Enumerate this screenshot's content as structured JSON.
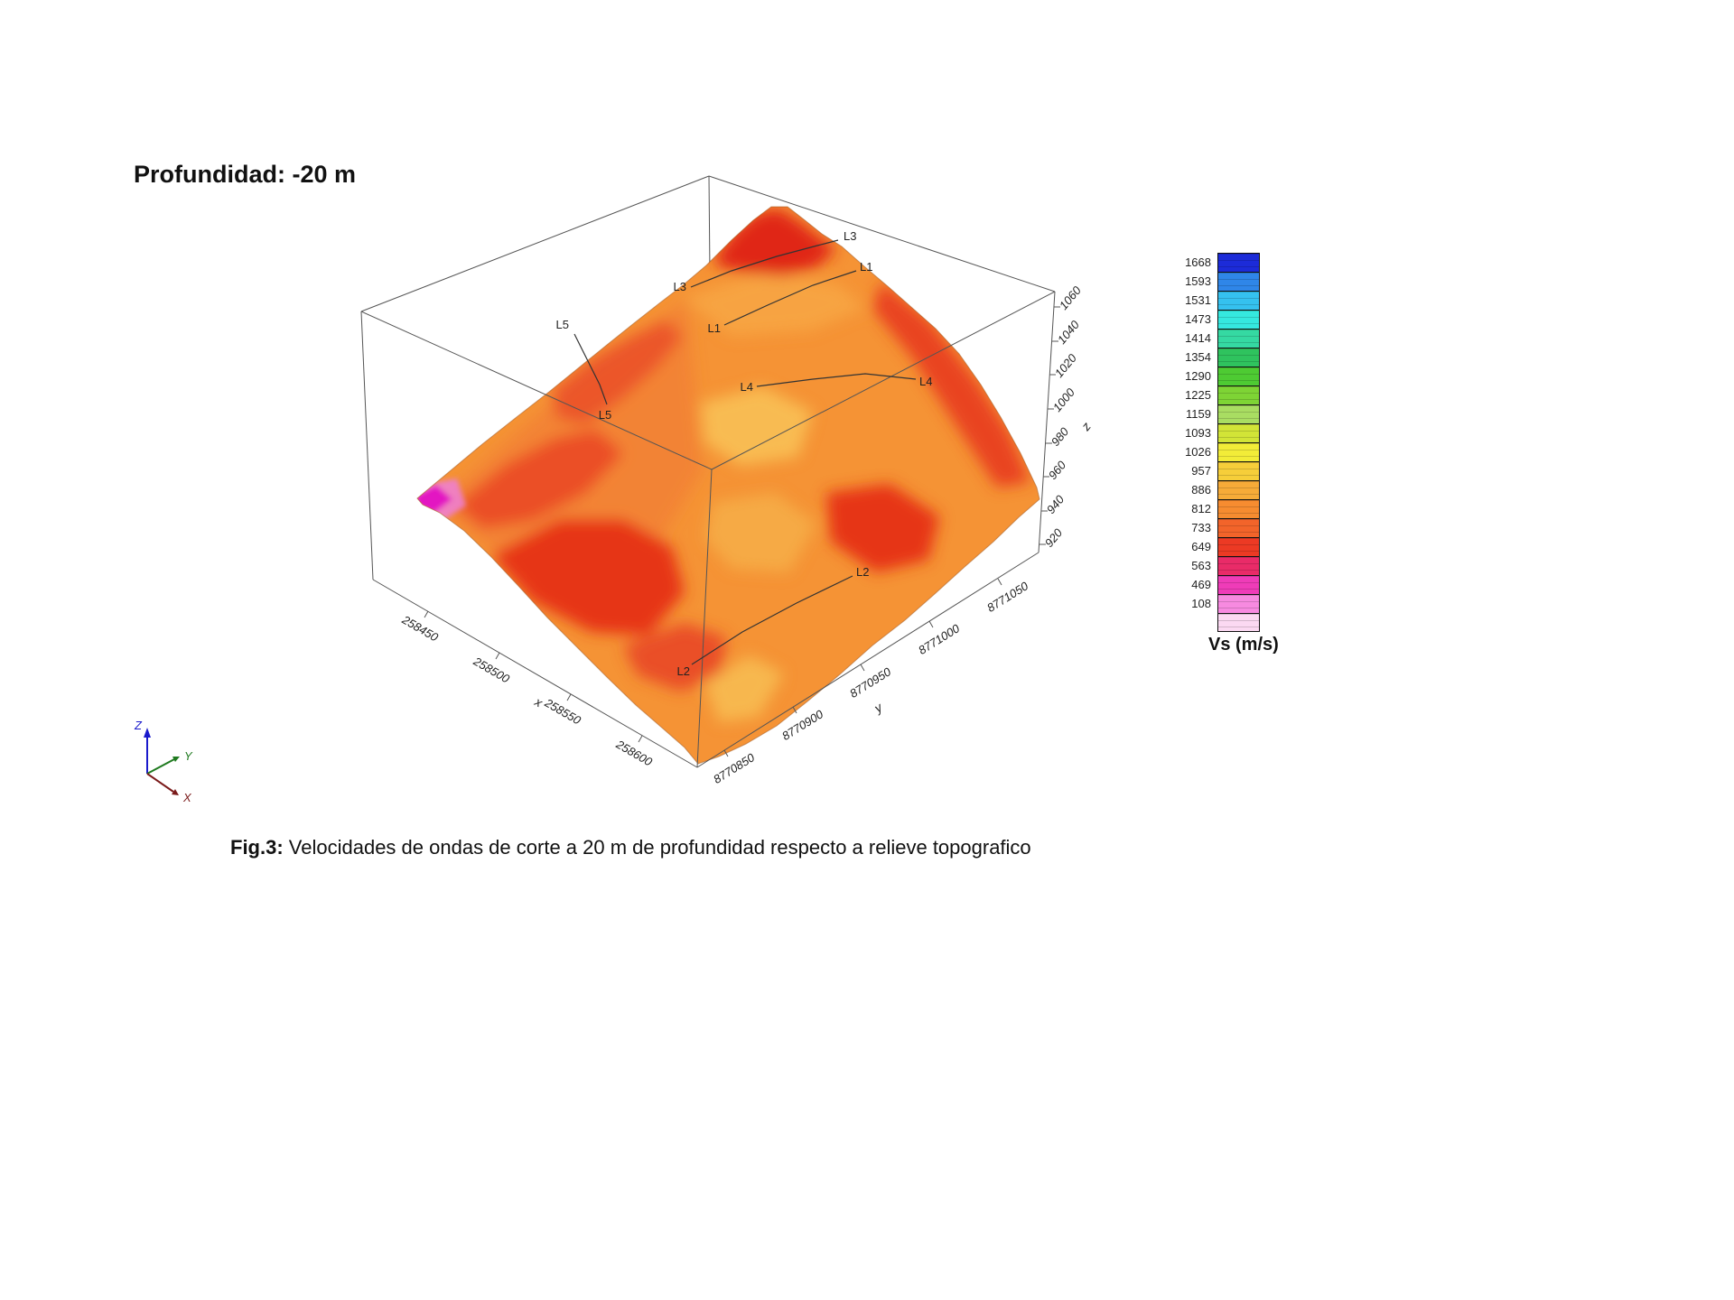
{
  "title": "Profundidad: -20 m",
  "caption": {
    "prefix": "Fig.3:",
    "text": " Velocidades de ondas de corte a 20 m de profundidad respecto a relieve topografico"
  },
  "legend": {
    "title": "Vs (m/s)",
    "entries": [
      {
        "value": "1668",
        "color": "#1c2bd8"
      },
      {
        "value": "1593",
        "color": "#2f86e8"
      },
      {
        "value": "1531",
        "color": "#35c1ef"
      },
      {
        "value": "1473",
        "color": "#35e8df"
      },
      {
        "value": "1414",
        "color": "#35d9a2"
      },
      {
        "value": "1354",
        "color": "#2fc35e"
      },
      {
        "value": "1290",
        "color": "#4ecb33"
      },
      {
        "value": "1225",
        "color": "#7ed435"
      },
      {
        "value": "1159",
        "color": "#a9dd62"
      },
      {
        "value": "1093",
        "color": "#d2e437"
      },
      {
        "value": "1026",
        "color": "#f2ec38"
      },
      {
        "value": "957",
        "color": "#f6ce3a"
      },
      {
        "value": "886",
        "color": "#f6ab38"
      },
      {
        "value": "812",
        "color": "#f68c30"
      },
      {
        "value": "733",
        "color": "#f2642a"
      },
      {
        "value": "649",
        "color": "#ec3a24"
      },
      {
        "value": "563",
        "color": "#e92b68"
      },
      {
        "value": "469",
        "color": "#ef3cb8"
      },
      {
        "value": "108",
        "color": "#f78ae0"
      },
      {
        "value": "",
        "color": "#fbd9f2"
      }
    ]
  },
  "axes": {
    "x": {
      "label": "x",
      "ticks": [
        "258450",
        "258500",
        "258550",
        "258600"
      ]
    },
    "y": {
      "label": "y",
      "ticks": [
        "8770850",
        "8770900",
        "8770950",
        "8771000",
        "8771050"
      ]
    },
    "z": {
      "label": "z",
      "ticks": [
        "920",
        "940",
        "960",
        "980",
        "1000",
        "1020",
        "1040",
        "1060"
      ]
    }
  },
  "triad": {
    "x": "X",
    "y": "Y",
    "z": "Z"
  },
  "survey_lines": [
    {
      "id": "L1"
    },
    {
      "id": "L2"
    },
    {
      "id": "L3"
    },
    {
      "id": "L4"
    },
    {
      "id": "L5"
    }
  ],
  "surface_colors": {
    "base_orange": "#f59335",
    "red_zones": "#e63518",
    "yellow_zones": "#f8c055",
    "low_velocity_magenta": "#e318c2"
  },
  "chart_data": {
    "type": "heatmap",
    "title": "Profundidad: -20 m",
    "value_label": "Vs (m/s)",
    "description": "3D topographic relief surface colored by shear-wave velocity Vs at 20 m depth; geophysical survey lines L1-L5 traced on the surface; surface is dominantly orange-red (Vs ~563-1026 m/s) with small yellow patches (~1026-1093) and a magenta low-velocity spot (~469) on the west edge",
    "x_axis": {
      "label": "x",
      "ticks": [
        258450,
        258500,
        258550,
        258600
      ]
    },
    "y_axis": {
      "label": "y",
      "ticks": [
        8770850,
        8770900,
        8770950,
        8771000,
        8771050
      ]
    },
    "z_axis": {
      "label": "z",
      "ticks": [
        920,
        940,
        960,
        980,
        1000,
        1020,
        1040,
        1060
      ]
    },
    "color_scale_values": [
      108,
      469,
      563,
      649,
      733,
      812,
      886,
      957,
      1026,
      1093,
      1159,
      1225,
      1290,
      1354,
      1414,
      1473,
      1531,
      1593,
      1668
    ],
    "annotations": [
      "L1",
      "L2",
      "L3",
      "L4",
      "L5"
    ],
    "legend_position": "right"
  }
}
